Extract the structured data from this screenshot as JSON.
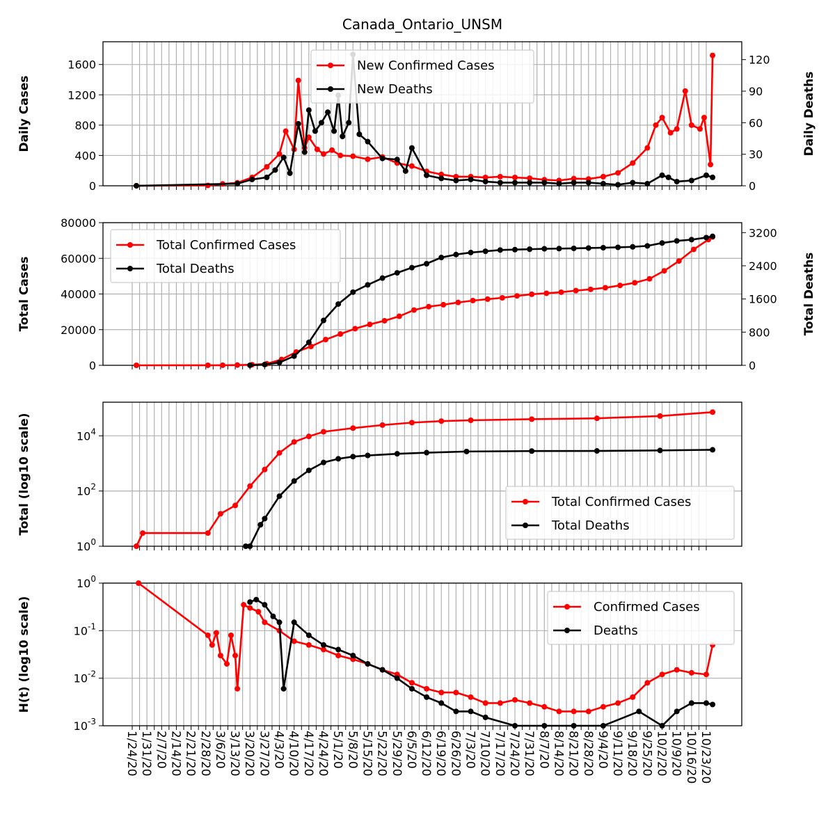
{
  "chart_data": {
    "type": "line",
    "title": "Canada_Ontario_UNSM",
    "x_tick_labels": [
      "1/24/20",
      "1/31/20",
      "2/7/20",
      "2/14/20",
      "2/21/20",
      "2/28/20",
      "3/6/20",
      "3/13/20",
      "3/20/20",
      "3/27/20",
      "4/3/20",
      "4/10/20",
      "4/17/20",
      "4/24/20",
      "5/1/20",
      "5/8/20",
      "5/15/20",
      "5/22/20",
      "5/29/20",
      "6/5/20",
      "6/12/20",
      "6/19/20",
      "6/26/20",
      "7/3/20",
      "7/10/20",
      "7/17/20",
      "7/24/20",
      "7/31/20",
      "8/7/20",
      "8/14/20",
      "8/21/20",
      "8/28/20",
      "9/4/20",
      "9/11/20",
      "9/18/20",
      "9/25/20",
      "10/2/20",
      "10/9/20",
      "10/16/20",
      "10/23/20"
    ],
    "grid": true,
    "colors": {
      "cases": "#ff0000",
      "deaths": "#000000"
    },
    "panels": [
      {
        "ylabel_left": "Daily Cases",
        "ylabel_right": "Daily Deaths",
        "ylim_left": [
          0,
          1900
        ],
        "ylim_right": [
          0,
          137
        ],
        "yticks_left": [
          "0",
          "400",
          "800",
          "1200",
          "1600"
        ],
        "yticks_right": [
          "0",
          "30",
          "60",
          "90",
          "120"
        ],
        "legend": "top-center",
        "series": [
          {
            "name": "New Confirmed Cases",
            "axis": "left",
            "x": [
              "2020-01-26",
              "2020-02-29",
              "2020-03-07",
              "2020-03-14",
              "2020-03-21",
              "2020-03-28",
              "2020-04-03",
              "2020-04-06",
              "2020-04-10",
              "2020-04-12",
              "2020-04-15",
              "2020-04-17",
              "2020-04-21",
              "2020-04-24",
              "2020-04-28",
              "2020-05-02",
              "2020-05-08",
              "2020-05-15",
              "2020-05-22",
              "2020-05-29",
              "2020-06-05",
              "2020-06-12",
              "2020-06-19",
              "2020-06-26",
              "2020-07-03",
              "2020-07-10",
              "2020-07-17",
              "2020-07-24",
              "2020-07-31",
              "2020-08-07",
              "2020-08-14",
              "2020-08-21",
              "2020-08-28",
              "2020-09-04",
              "2020-09-11",
              "2020-09-18",
              "2020-09-25",
              "2020-09-29",
              "2020-10-02",
              "2020-10-06",
              "2020-10-09",
              "2020-10-13",
              "2020-10-16",
              "2020-10-20",
              "2020-10-22",
              "2020-10-25",
              "2020-10-26"
            ],
            "y": [
              1,
              5,
              25,
              40,
              110,
              250,
              420,
              720,
              480,
              1390,
              500,
              640,
              480,
              420,
              470,
              400,
              390,
              350,
              380,
              300,
              260,
              190,
              150,
              120,
              120,
              110,
              120,
              110,
              100,
              80,
              70,
              95,
              90,
              120,
              170,
              300,
              500,
              800,
              900,
              700,
              750,
              1250,
              800,
              750,
              900,
              280,
              1720
            ]
          },
          {
            "name": "New Deaths",
            "axis": "right",
            "x": [
              "2020-01-26",
              "2020-03-14",
              "2020-03-21",
              "2020-03-28",
              "2020-04-01",
              "2020-04-05",
              "2020-04-08",
              "2020-04-12",
              "2020-04-15",
              "2020-04-17",
              "2020-04-20",
              "2020-04-23",
              "2020-04-26",
              "2020-04-29",
              "2020-05-01",
              "2020-05-03",
              "2020-05-06",
              "2020-05-08",
              "2020-05-11",
              "2020-05-15",
              "2020-05-22",
              "2020-05-29",
              "2020-06-02",
              "2020-06-05",
              "2020-06-12",
              "2020-06-19",
              "2020-06-26",
              "2020-07-03",
              "2020-07-10",
              "2020-07-17",
              "2020-07-24",
              "2020-07-31",
              "2020-08-07",
              "2020-08-14",
              "2020-08-21",
              "2020-08-28",
              "2020-09-04",
              "2020-09-11",
              "2020-09-18",
              "2020-09-25",
              "2020-10-02",
              "2020-10-05",
              "2020-10-09",
              "2020-10-16",
              "2020-10-23",
              "2020-10-26"
            ],
            "y": [
              0,
              2,
              6,
              8,
              15,
              27,
              12,
              59,
              32,
              72,
              52,
              60,
              70,
              52,
              86,
              47,
              60,
              125,
              49,
              42,
              26,
              25,
              14,
              36,
              10,
              7,
              5,
              6,
              4,
              3,
              3,
              3,
              3,
              2,
              3,
              3,
              2,
              1,
              3,
              2,
              10,
              8,
              4,
              5,
              10,
              8
            ]
          }
        ]
      },
      {
        "ylabel_left": "Total Cases",
        "ylabel_right": "Total Deaths",
        "ylim_left": [
          0,
          80000
        ],
        "ylim_right": [
          0,
          3440
        ],
        "yticks_left": [
          "0",
          "20000",
          "40000",
          "60000",
          "80000"
        ],
        "yticks_right": [
          "0",
          "800",
          "1600",
          "2400",
          "3200"
        ],
        "legend": "upper left",
        "series": [
          {
            "name": "Total Confirmed Cases",
            "axis": "left",
            "x": [
              "2020-01-26",
              "2020-02-29",
              "2020-03-07",
              "2020-03-14",
              "2020-03-21",
              "2020-03-28",
              "2020-04-04",
              "2020-04-11",
              "2020-04-18",
              "2020-04-25",
              "2020-05-02",
              "2020-05-09",
              "2020-05-16",
              "2020-05-23",
              "2020-05-30",
              "2020-06-06",
              "2020-06-13",
              "2020-06-20",
              "2020-06-27",
              "2020-07-04",
              "2020-07-11",
              "2020-07-18",
              "2020-07-25",
              "2020-08-01",
              "2020-08-08",
              "2020-08-15",
              "2020-08-22",
              "2020-08-29",
              "2020-09-05",
              "2020-09-12",
              "2020-09-19",
              "2020-09-26",
              "2020-10-03",
              "2020-10-10",
              "2020-10-17",
              "2020-10-24",
              "2020-10-26"
            ],
            "y": [
              1,
              20,
              30,
              130,
              320,
              860,
              3250,
              7470,
              10580,
              14430,
              17550,
              20550,
              22950,
              25000,
              27500,
              31000,
              32900,
              34000,
              35250,
              36300,
              37100,
              37850,
              38950,
              39850,
              40400,
              41000,
              41900,
              42600,
              43500,
              44800,
              46300,
              48500,
              53000,
              58500,
              65000,
              70500,
              72000
            ]
          },
          {
            "name": "Total Deaths",
            "axis": "right",
            "x": [
              "2020-03-20",
              "2020-03-27",
              "2020-04-03",
              "2020-04-10",
              "2020-04-17",
              "2020-04-24",
              "2020-05-01",
              "2020-05-08",
              "2020-05-15",
              "2020-05-22",
              "2020-05-29",
              "2020-06-05",
              "2020-06-12",
              "2020-06-19",
              "2020-06-26",
              "2020-07-03",
              "2020-07-10",
              "2020-07-17",
              "2020-07-24",
              "2020-07-31",
              "2020-08-07",
              "2020-08-14",
              "2020-08-21",
              "2020-08-28",
              "2020-09-04",
              "2020-09-11",
              "2020-09-18",
              "2020-09-25",
              "2020-10-02",
              "2020-10-09",
              "2020-10-16",
              "2020-10-23",
              "2020-10-26"
            ],
            "y": [
              1,
              18,
              67,
              222,
              553,
              1082,
              1477,
              1765,
              1940,
              2103,
              2230,
              2355,
              2450,
              2600,
              2672,
              2720,
              2750,
              2780,
              2790,
              2800,
              2810,
              2815,
              2820,
              2828,
              2836,
              2845,
              2857,
              2880,
              2950,
              3000,
              3030,
              3080,
              3110
            ]
          }
        ]
      },
      {
        "ylabel_left": "Total (log10 scale)",
        "yscale": "log",
        "ylim_left": [
          1,
          165000
        ],
        "yticks_left": [
          "10^0",
          "10^2",
          "10^4"
        ],
        "legend": "lower right",
        "series": [
          {
            "name": "Total Confirmed Cases",
            "x": [
              "2020-01-26",
              "2020-01-29",
              "2020-02-29",
              "2020-03-06",
              "2020-03-13",
              "2020-03-20",
              "2020-03-27",
              "2020-04-03",
              "2020-04-10",
              "2020-04-17",
              "2020-04-24",
              "2020-05-08",
              "2020-05-22",
              "2020-06-05",
              "2020-06-19",
              "2020-07-03",
              "2020-08-01",
              "2020-09-01",
              "2020-10-01",
              "2020-10-26"
            ],
            "y": [
              1,
              3,
              3,
              15,
              30,
              150,
              600,
              2400,
              6000,
              9500,
              14000,
              19000,
              24500,
              30000,
              34000,
              36500,
              40000,
              43000,
              52000,
              72000
            ]
          },
          {
            "name": "Total Deaths",
            "x": [
              "2020-03-18",
              "2020-03-20",
              "2020-03-25",
              "2020-03-27",
              "2020-04-03",
              "2020-04-10",
              "2020-04-17",
              "2020-04-24",
              "2020-05-01",
              "2020-05-08",
              "2020-05-15",
              "2020-05-29",
              "2020-06-12",
              "2020-07-01",
              "2020-08-01",
              "2020-09-01",
              "2020-10-01",
              "2020-10-26"
            ],
            "y": [
              1,
              1,
              6,
              10,
              65,
              230,
              560,
              1080,
              1470,
              1765,
              1940,
              2230,
              2450,
              2700,
              2800,
              2830,
              2950,
              3110
            ]
          }
        ]
      },
      {
        "ylabel_left": "H(t) (log10 scale)",
        "yscale": "log",
        "ylim_left": [
          0.001,
          1
        ],
        "yticks_left": [
          "10^-3",
          "10^-2",
          "10^-1",
          "10^0"
        ],
        "legend": "upper right",
        "series": [
          {
            "name": "Confirmed Cases",
            "x": [
              "2020-01-27",
              "2020-02-29",
              "2020-03-02",
              "2020-03-04",
              "2020-03-06",
              "2020-03-09",
              "2020-03-11",
              "2020-03-13",
              "2020-03-14",
              "2020-03-17",
              "2020-03-20",
              "2020-03-24",
              "2020-03-27",
              "2020-04-03",
              "2020-04-10",
              "2020-04-17",
              "2020-04-24",
              "2020-05-01",
              "2020-05-08",
              "2020-05-15",
              "2020-05-22",
              "2020-05-29",
              "2020-06-05",
              "2020-06-12",
              "2020-06-19",
              "2020-06-26",
              "2020-07-03",
              "2020-07-10",
              "2020-07-17",
              "2020-07-24",
              "2020-07-31",
              "2020-08-07",
              "2020-08-14",
              "2020-08-21",
              "2020-08-28",
              "2020-09-04",
              "2020-09-11",
              "2020-09-18",
              "2020-09-25",
              "2020-10-02",
              "2020-10-09",
              "2020-10-16",
              "2020-10-23",
              "2020-10-26"
            ],
            "y": [
              1,
              0.08,
              0.05,
              0.09,
              0.03,
              0.02,
              0.08,
              0.03,
              0.006,
              0.35,
              0.3,
              0.25,
              0.15,
              0.1,
              0.06,
              0.05,
              0.04,
              0.03,
              0.025,
              0.02,
              0.015,
              0.012,
              0.008,
              0.006,
              0.005,
              0.005,
              0.004,
              0.003,
              0.003,
              0.0035,
              0.003,
              0.0025,
              0.002,
              0.002,
              0.002,
              0.0025,
              0.003,
              0.004,
              0.008,
              0.012,
              0.015,
              0.013,
              0.012,
              0.05
            ]
          },
          {
            "name": "Deaths",
            "x": [
              "2020-03-20",
              "2020-03-23",
              "2020-03-27",
              "2020-03-31",
              "2020-04-03",
              "2020-04-05",
              "2020-04-10",
              "2020-04-17",
              "2020-04-24",
              "2020-05-01",
              "2020-05-08",
              "2020-05-15",
              "2020-05-22",
              "2020-05-29",
              "2020-06-05",
              "2020-06-12",
              "2020-06-19",
              "2020-06-26",
              "2020-07-03",
              "2020-07-10",
              "2020-07-24",
              "2020-08-07",
              "2020-08-21",
              "2020-09-04",
              "2020-09-21",
              "2020-10-02",
              "2020-10-09",
              "2020-10-16",
              "2020-10-23",
              "2020-10-26"
            ],
            "y": [
              0.4,
              0.45,
              0.35,
              0.2,
              0.15,
              0.006,
              0.15,
              0.08,
              0.05,
              0.04,
              0.03,
              0.02,
              0.015,
              0.01,
              0.006,
              0.004,
              0.003,
              0.002,
              0.002,
              0.0015,
              0.001,
              0.001,
              0.001,
              0.001,
              0.002,
              0.001,
              0.002,
              0.003,
              0.003,
              0.0028
            ]
          }
        ]
      }
    ]
  }
}
